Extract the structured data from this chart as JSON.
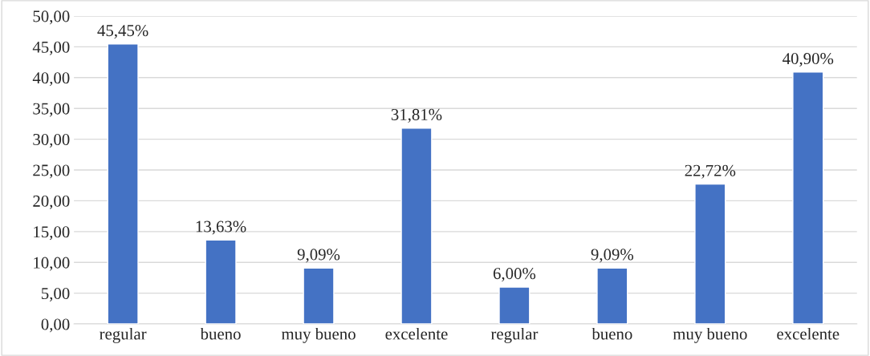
{
  "chart_data": {
    "type": "bar",
    "categories": [
      "regular",
      "bueno",
      "muy bueno",
      "excelente",
      "regular",
      "bueno",
      "muy bueno",
      "excelente"
    ],
    "values": [
      45.45,
      13.63,
      9.09,
      31.81,
      6.0,
      9.09,
      22.72,
      40.9
    ],
    "value_labels": [
      "45,45%",
      "13,63%",
      "9,09%",
      "31,81%",
      "6,00%",
      "9,09%",
      "22,72%",
      "40,90%"
    ],
    "color": "#4472c4",
    "ylim": [
      0,
      50
    ],
    "yticks": [
      {
        "value": 0,
        "label": "0,00"
      },
      {
        "value": 5,
        "label": "5,00"
      },
      {
        "value": 10,
        "label": "10,00"
      },
      {
        "value": 15,
        "label": "15,00"
      },
      {
        "value": 20,
        "label": "20,00"
      },
      {
        "value": 25,
        "label": "25,00"
      },
      {
        "value": 30,
        "label": "30,00"
      },
      {
        "value": 35,
        "label": "35,00"
      },
      {
        "value": 40,
        "label": "40,00"
      },
      {
        "value": 45,
        "label": "45,00"
      },
      {
        "value": 50,
        "label": "50,00"
      }
    ],
    "grid": "y"
  }
}
